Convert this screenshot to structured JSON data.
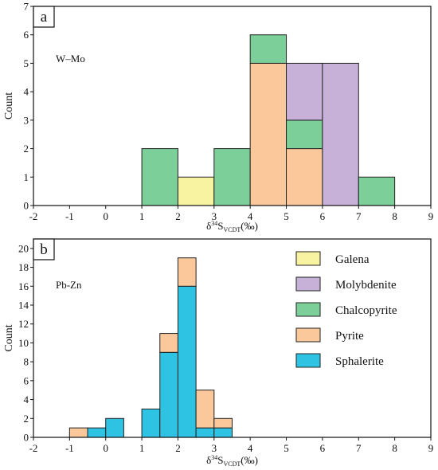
{
  "chart_data": [
    {
      "type": "bar",
      "panel_label": "a",
      "annotation": "W–Mo",
      "xlabel_main": "δ",
      "xlabel_sup": "34",
      "xlabel_S": "S",
      "xlabel_sub": "VCDT",
      "xlabel_unit": "(‰)",
      "ylabel": "Count",
      "xlim": [
        -2,
        9
      ],
      "ylim": [
        0,
        7
      ],
      "xticks": [
        -2,
        -1,
        0,
        1,
        2,
        3,
        4,
        5,
        6,
        7,
        8,
        9
      ],
      "yticks": [
        0,
        1,
        2,
        3,
        4,
        5,
        6,
        7
      ],
      "bars": [
        {
          "series": "Chalcopyrite",
          "x0": 1,
          "x1": 2,
          "y0": 0,
          "y1": 2
        },
        {
          "series": "Galena",
          "x0": 2,
          "x1": 3,
          "y0": 0,
          "y1": 1
        },
        {
          "series": "Chalcopyrite",
          "x0": 3,
          "x1": 4,
          "y0": 0,
          "y1": 2
        },
        {
          "series": "Pyrite",
          "x0": 4,
          "x1": 5,
          "y0": 0,
          "y1": 5
        },
        {
          "series": "Chalcopyrite",
          "x0": 4,
          "x1": 5,
          "y0": 5,
          "y1": 6
        },
        {
          "series": "Pyrite",
          "x0": 5,
          "x1": 6,
          "y0": 0,
          "y1": 2
        },
        {
          "series": "Chalcopyrite",
          "x0": 5,
          "x1": 6,
          "y0": 2,
          "y1": 3
        },
        {
          "series": "Molybdenite",
          "x0": 5,
          "x1": 6,
          "y0": 3,
          "y1": 5
        },
        {
          "series": "Molybdenite",
          "x0": 6,
          "x1": 7,
          "y0": 0,
          "y1": 5
        },
        {
          "series": "Chalcopyrite",
          "x0": 7,
          "x1": 8,
          "y0": 0,
          "y1": 1
        }
      ]
    },
    {
      "type": "bar",
      "panel_label": "b",
      "annotation": "Pb-Zn",
      "xlabel_main": "δ",
      "xlabel_sup": "34",
      "xlabel_S": "S",
      "xlabel_sub": "VCDT",
      "xlabel_unit": "(‰)",
      "ylabel": "Count",
      "xlim": [
        -2,
        9
      ],
      "ylim": [
        0,
        21
      ],
      "xticks": [
        -2,
        -1,
        0,
        1,
        2,
        3,
        4,
        5,
        6,
        7,
        8,
        9
      ],
      "yticks": [
        0,
        2,
        4,
        6,
        8,
        10,
        12,
        14,
        16,
        18,
        20
      ],
      "bars": [
        {
          "series": "Pyrite",
          "x0": -1,
          "x1": -0.5,
          "y0": 0,
          "y1": 1
        },
        {
          "series": "Sphalerite",
          "x0": -0.5,
          "x1": 0,
          "y0": 0,
          "y1": 1
        },
        {
          "series": "Sphalerite",
          "x0": 0,
          "x1": 0.5,
          "y0": 0,
          "y1": 2
        },
        {
          "series": "Sphalerite",
          "x0": 1,
          "x1": 1.5,
          "y0": 0,
          "y1": 3
        },
        {
          "series": "Sphalerite",
          "x0": 1.5,
          "x1": 2,
          "y0": 0,
          "y1": 9
        },
        {
          "series": "Pyrite",
          "x0": 1.5,
          "x1": 2,
          "y0": 9,
          "y1": 11
        },
        {
          "series": "Sphalerite",
          "x0": 2,
          "x1": 2.5,
          "y0": 0,
          "y1": 16
        },
        {
          "series": "Pyrite",
          "x0": 2,
          "x1": 2.5,
          "y0": 16,
          "y1": 19
        },
        {
          "series": "Sphalerite",
          "x0": 2.5,
          "x1": 3,
          "y0": 0,
          "y1": 1
        },
        {
          "series": "Pyrite",
          "x0": 2.5,
          "x1": 3,
          "y0": 1,
          "y1": 5
        },
        {
          "series": "Sphalerite",
          "x0": 3,
          "x1": 3.5,
          "y0": 0,
          "y1": 1
        },
        {
          "series": "Pyrite",
          "x0": 3,
          "x1": 3.5,
          "y0": 1,
          "y1": 2
        }
      ]
    }
  ],
  "legend": {
    "placement": "top-right",
    "items": [
      {
        "name": "Galena",
        "color": "#f8f3a0"
      },
      {
        "name": "Molybdenite",
        "color": "#c7b1d9"
      },
      {
        "name": "Chalcopyrite",
        "color": "#7ccf99"
      },
      {
        "name": "Pyrite",
        "color": "#fbc89c"
      },
      {
        "name": "Sphalerite",
        "color": "#2fc3e3"
      }
    ]
  }
}
